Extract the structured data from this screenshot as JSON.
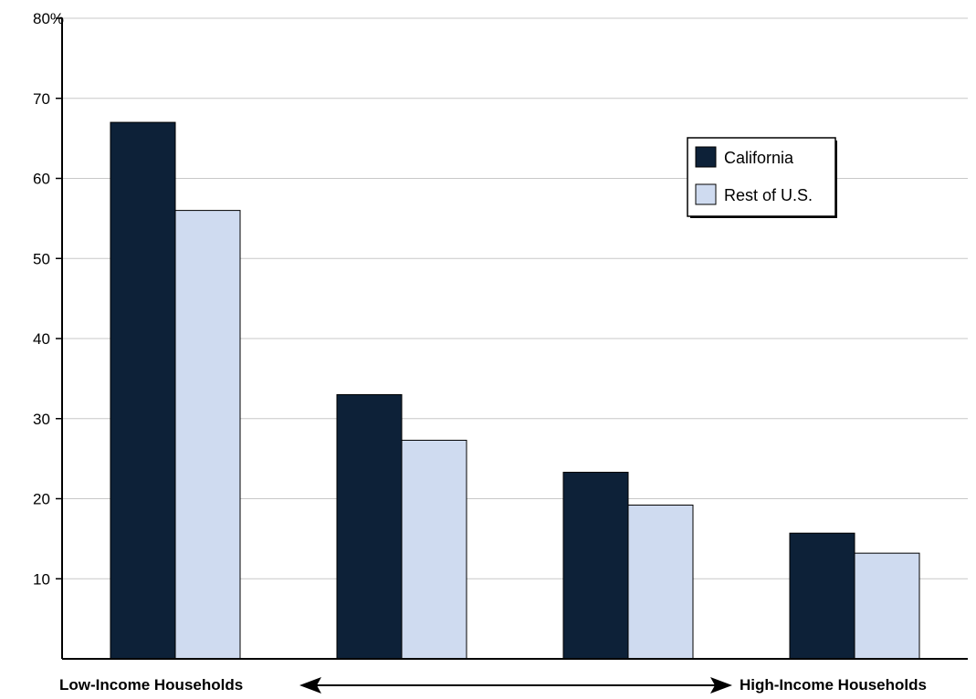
{
  "chart_data": {
    "type": "bar",
    "title": "",
    "xlabel": "",
    "ylabel": "",
    "categories": [
      "",
      "",
      "",
      ""
    ],
    "series": [
      {
        "name": "California",
        "values": [
          67,
          33,
          23.3,
          15.7
        ],
        "color": "#0d2138"
      },
      {
        "name": "Rest of U.S.",
        "values": [
          56,
          27.3,
          19.2,
          13.2
        ],
        "color": "#cfdbf0"
      }
    ],
    "ylim": [
      0,
      80
    ],
    "yticks": [
      {
        "value": 10,
        "label": "10"
      },
      {
        "value": 20,
        "label": "20"
      },
      {
        "value": 30,
        "label": "30"
      },
      {
        "value": 40,
        "label": "40"
      },
      {
        "value": 50,
        "label": "50"
      },
      {
        "value": 60,
        "label": "60"
      },
      {
        "value": 70,
        "label": "70"
      },
      {
        "value": 80,
        "label": "80%"
      }
    ],
    "grid": true,
    "legend_position": "top-right",
    "x_axis_ends": {
      "left": "Low-Income Households",
      "right": "High-Income Households"
    }
  }
}
